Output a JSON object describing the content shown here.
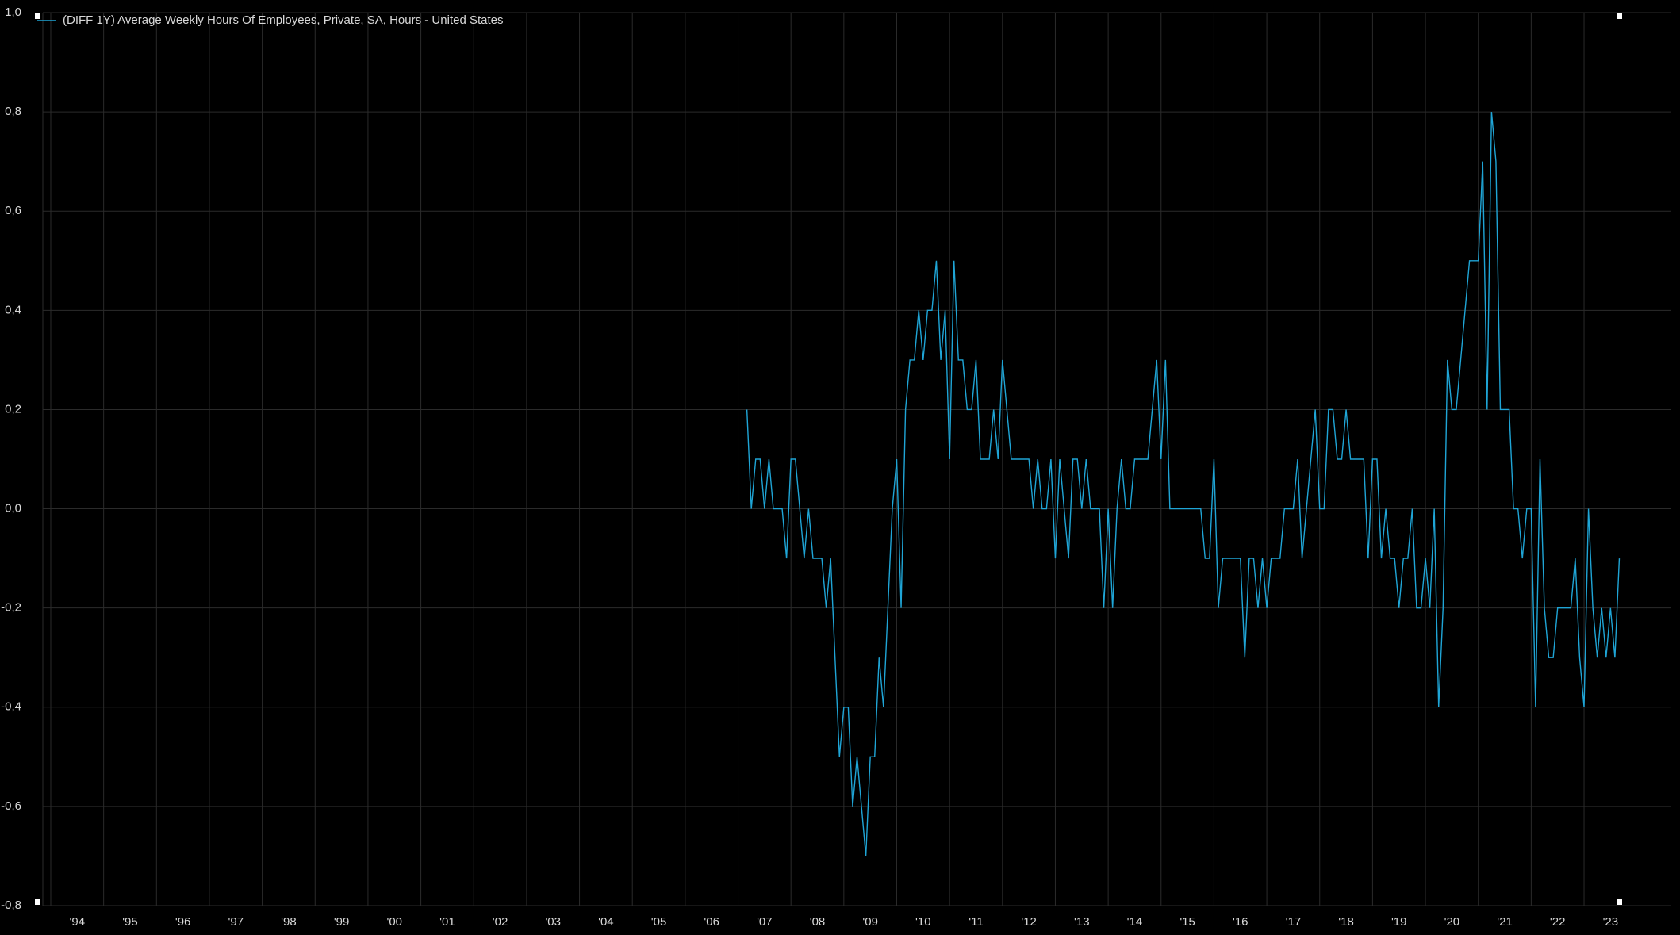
{
  "chart_data": {
    "type": "line",
    "title": "(DIFF 1Y) Average Weekly Hours Of Employees, Private, SA, Hours - United States",
    "x": [
      "2007-03",
      "2007-04",
      "2007-05",
      "2007-06",
      "2007-07",
      "2007-08",
      "2007-09",
      "2007-10",
      "2007-11",
      "2007-12",
      "2008-01",
      "2008-02",
      "2008-03",
      "2008-04",
      "2008-05",
      "2008-06",
      "2008-07",
      "2008-08",
      "2008-09",
      "2008-10",
      "2008-11",
      "2008-12",
      "2009-01",
      "2009-02",
      "2009-03",
      "2009-04",
      "2009-05",
      "2009-06",
      "2009-07",
      "2009-08",
      "2009-09",
      "2009-10",
      "2009-11",
      "2009-12",
      "2010-01",
      "2010-02",
      "2010-03",
      "2010-04",
      "2010-05",
      "2010-06",
      "2010-07",
      "2010-08",
      "2010-09",
      "2010-10",
      "2010-11",
      "2010-12",
      "2011-01",
      "2011-02",
      "2011-03",
      "2011-04",
      "2011-05",
      "2011-06",
      "2011-07",
      "2011-08",
      "2011-09",
      "2011-10",
      "2011-11",
      "2011-12",
      "2012-01",
      "2012-02",
      "2012-03",
      "2012-04",
      "2012-05",
      "2012-06",
      "2012-07",
      "2012-08",
      "2012-09",
      "2012-10",
      "2012-11",
      "2012-12",
      "2013-01",
      "2013-02",
      "2013-03",
      "2013-04",
      "2013-05",
      "2013-06",
      "2013-07",
      "2013-08",
      "2013-09",
      "2013-10",
      "2013-11",
      "2013-12",
      "2014-01",
      "2014-02",
      "2014-03",
      "2014-04",
      "2014-05",
      "2014-06",
      "2014-07",
      "2014-08",
      "2014-09",
      "2014-10",
      "2014-11",
      "2014-12",
      "2015-01",
      "2015-02",
      "2015-03",
      "2015-04",
      "2015-05",
      "2015-06",
      "2015-07",
      "2015-08",
      "2015-09",
      "2015-10",
      "2015-11",
      "2015-12",
      "2016-01",
      "2016-02",
      "2016-03",
      "2016-04",
      "2016-05",
      "2016-06",
      "2016-07",
      "2016-08",
      "2016-09",
      "2016-10",
      "2016-11",
      "2016-12",
      "2017-01",
      "2017-02",
      "2017-03",
      "2017-04",
      "2017-05",
      "2017-06",
      "2017-07",
      "2017-08",
      "2017-09",
      "2017-10",
      "2017-11",
      "2017-12",
      "2018-01",
      "2018-02",
      "2018-03",
      "2018-04",
      "2018-05",
      "2018-06",
      "2018-07",
      "2018-08",
      "2018-09",
      "2018-10",
      "2018-11",
      "2018-12",
      "2019-01",
      "2019-02",
      "2019-03",
      "2019-04",
      "2019-05",
      "2019-06",
      "2019-07",
      "2019-08",
      "2019-09",
      "2019-10",
      "2019-11",
      "2019-12",
      "2020-01",
      "2020-02",
      "2020-03",
      "2020-04",
      "2020-05",
      "2020-06",
      "2020-07",
      "2020-08",
      "2020-09",
      "2020-10",
      "2020-11",
      "2020-12",
      "2021-01",
      "2021-02",
      "2021-03",
      "2021-04",
      "2021-05",
      "2021-06",
      "2021-07",
      "2021-08",
      "2021-09",
      "2021-10",
      "2021-11",
      "2021-12",
      "2022-01",
      "2022-02",
      "2022-03",
      "2022-04",
      "2022-05",
      "2022-06",
      "2022-07",
      "2022-08",
      "2022-09",
      "2022-10",
      "2022-11",
      "2022-12",
      "2023-01",
      "2023-02",
      "2023-03",
      "2023-04",
      "2023-05",
      "2023-06",
      "2023-07",
      "2023-08",
      "2023-09"
    ],
    "series": [
      {
        "name": "(DIFF 1Y) Average Weekly Hours Of Employees, Private, SA, Hours - United States",
        "color": "#1fa5d6",
        "values": [
          0.2,
          0.0,
          0.1,
          0.1,
          0.0,
          0.1,
          0.0,
          0.0,
          0.0,
          -0.1,
          0.1,
          0.1,
          0.0,
          -0.1,
          0.0,
          -0.1,
          -0.1,
          -0.1,
          -0.2,
          -0.1,
          -0.3,
          -0.5,
          -0.4,
          -0.4,
          -0.6,
          -0.5,
          -0.6,
          -0.7,
          -0.5,
          -0.5,
          -0.3,
          -0.4,
          -0.2,
          0.0,
          0.1,
          -0.2,
          0.2,
          0.3,
          0.3,
          0.4,
          0.3,
          0.4,
          0.4,
          0.5,
          0.3,
          0.4,
          0.1,
          0.5,
          0.3,
          0.3,
          0.2,
          0.2,
          0.3,
          0.1,
          0.1,
          0.1,
          0.2,
          0.1,
          0.3,
          0.2,
          0.1,
          0.1,
          0.1,
          0.1,
          0.1,
          0.0,
          0.1,
          0.0,
          0.0,
          0.1,
          -0.1,
          0.1,
          0.0,
          -0.1,
          0.1,
          0.1,
          0.0,
          0.1,
          0.0,
          0.0,
          0.0,
          -0.2,
          0.0,
          -0.2,
          0.0,
          0.1,
          0.0,
          0.0,
          0.1,
          0.1,
          0.1,
          0.1,
          0.2,
          0.3,
          0.1,
          0.3,
          0.0,
          0.0,
          0.0,
          0.0,
          0.0,
          0.0,
          0.0,
          0.0,
          -0.1,
          -0.1,
          0.1,
          -0.2,
          -0.1,
          -0.1,
          -0.1,
          -0.1,
          -0.1,
          -0.3,
          -0.1,
          -0.1,
          -0.2,
          -0.1,
          -0.2,
          -0.1,
          -0.1,
          -0.1,
          0.0,
          0.0,
          0.0,
          0.1,
          -0.1,
          0.0,
          0.1,
          0.2,
          0.0,
          0.0,
          0.2,
          0.2,
          0.1,
          0.1,
          0.2,
          0.1,
          0.1,
          0.1,
          0.1,
          -0.1,
          0.1,
          0.1,
          -0.1,
          0.0,
          -0.1,
          -0.1,
          -0.2,
          -0.1,
          -0.1,
          0.0,
          -0.2,
          -0.2,
          -0.1,
          -0.2,
          0.0,
          -0.4,
          -0.2,
          0.3,
          0.2,
          0.2,
          0.3,
          0.4,
          0.5,
          0.5,
          0.5,
          0.7,
          0.2,
          0.8,
          0.7,
          0.2,
          0.2,
          0.2,
          0.0,
          0.0,
          -0.1,
          0.0,
          0.0,
          -0.4,
          0.1,
          -0.2,
          -0.3,
          -0.3,
          -0.2,
          -0.2,
          -0.2,
          -0.2,
          -0.1,
          -0.3,
          -0.4,
          0.0,
          -0.2,
          -0.3,
          -0.2,
          -0.3,
          -0.2,
          -0.3,
          -0.1
        ]
      }
    ],
    "xlim": [
      1993.85,
      2024.65
    ],
    "xticks": [
      {
        "value": 1994,
        "label": "'94"
      },
      {
        "value": 1995,
        "label": "'95"
      },
      {
        "value": 1996,
        "label": "'96"
      },
      {
        "value": 1997,
        "label": "'97"
      },
      {
        "value": 1998,
        "label": "'98"
      },
      {
        "value": 1999,
        "label": "'99"
      },
      {
        "value": 2000,
        "label": "'00"
      },
      {
        "value": 2001,
        "label": "'01"
      },
      {
        "value": 2002,
        "label": "'02"
      },
      {
        "value": 2003,
        "label": "'03"
      },
      {
        "value": 2004,
        "label": "'04"
      },
      {
        "value": 2005,
        "label": "'05"
      },
      {
        "value": 2006,
        "label": "'06"
      },
      {
        "value": 2007,
        "label": "'07"
      },
      {
        "value": 2008,
        "label": "'08"
      },
      {
        "value": 2009,
        "label": "'09"
      },
      {
        "value": 2010,
        "label": "'10"
      },
      {
        "value": 2011,
        "label": "'11"
      },
      {
        "value": 2012,
        "label": "'12"
      },
      {
        "value": 2013,
        "label": "'13"
      },
      {
        "value": 2014,
        "label": "'14"
      },
      {
        "value": 2015,
        "label": "'15"
      },
      {
        "value": 2016,
        "label": "'16"
      },
      {
        "value": 2017,
        "label": "'17"
      },
      {
        "value": 2018,
        "label": "'18"
      },
      {
        "value": 2019,
        "label": "'19"
      },
      {
        "value": 2020,
        "label": "'20"
      },
      {
        "value": 2021,
        "label": "'21"
      },
      {
        "value": 2022,
        "label": "'22"
      },
      {
        "value": 2023,
        "label": "'23"
      }
    ],
    "ylim": [
      -0.8,
      1.0
    ],
    "yticks": [
      {
        "value": -0.8,
        "label": "-0,8"
      },
      {
        "value": -0.6,
        "label": "-0,6"
      },
      {
        "value": -0.4,
        "label": "-0,4"
      },
      {
        "value": -0.2,
        "label": "-0,2"
      },
      {
        "value": 0.0,
        "label": "0,0"
      },
      {
        "value": 0.2,
        "label": "0,2"
      },
      {
        "value": 0.4,
        "label": "0,4"
      },
      {
        "value": 0.6,
        "label": "0,6"
      },
      {
        "value": 0.8,
        "label": "0,8"
      },
      {
        "value": 1.0,
        "label": "1,0"
      }
    ],
    "grid": true,
    "legend": "top-left"
  }
}
